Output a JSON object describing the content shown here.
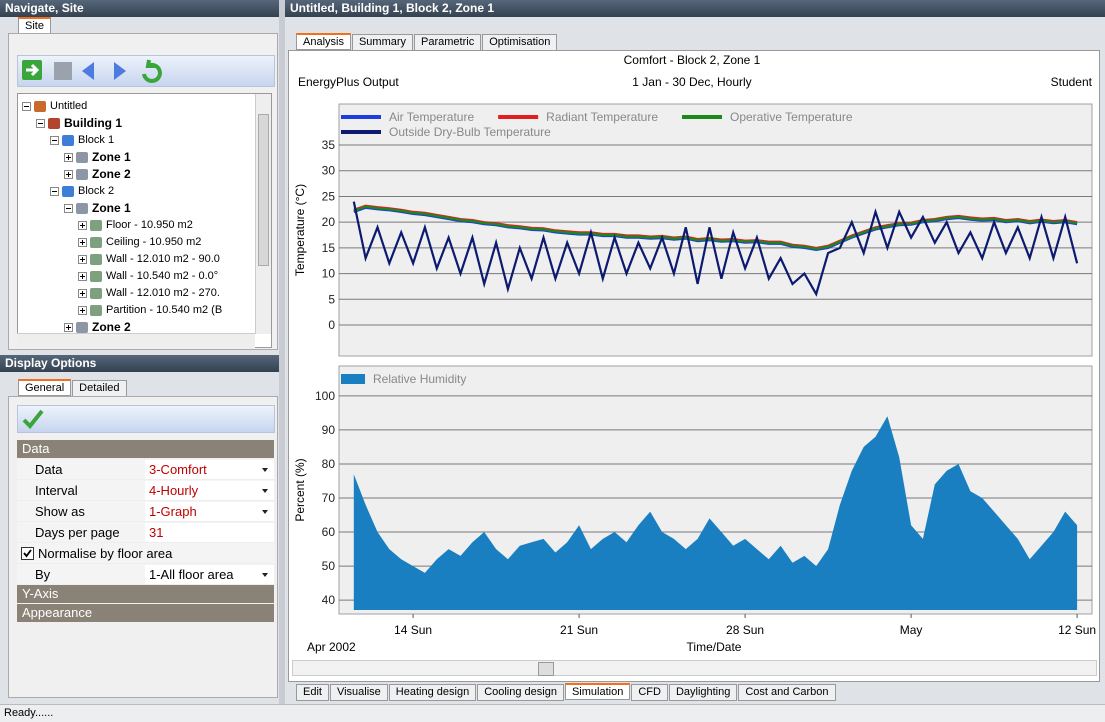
{
  "left_panel": {
    "title": "Navigate, Site",
    "tabs": [
      "Site"
    ],
    "tree": {
      "label": "Untitled",
      "children": [
        {
          "label": "Building 1",
          "bold": true,
          "children": [
            {
              "label": "Block 1",
              "children": [
                {
                  "label": "Zone 1",
                  "bold": true
                },
                {
                  "label": "Zone 2",
                  "bold": true
                }
              ]
            },
            {
              "label": "Block 2",
              "children": [
                {
                  "label": "Zone 1",
                  "bold": true,
                  "children": [
                    {
                      "label": "Floor - 10.950 m2"
                    },
                    {
                      "label": "Ceiling - 10.950 m2"
                    },
                    {
                      "label": "Wall - 12.010 m2 - 90.0"
                    },
                    {
                      "label": "Wall - 10.540 m2 - 0.0°"
                    },
                    {
                      "label": "Wall - 12.010 m2 - 270."
                    },
                    {
                      "label": "Partition - 10.540 m2 (B"
                    }
                  ]
                },
                {
                  "label": "Zone 2",
                  "bold": true
                }
              ]
            }
          ]
        }
      ]
    }
  },
  "display_options": {
    "title": "Display Options",
    "tabs": [
      "General",
      "Detailed"
    ],
    "sections": [
      {
        "title": "Data",
        "rows": [
          {
            "label": "Data",
            "value": "3-Comfort",
            "dropdown": true,
            "color": "#c00000"
          },
          {
            "label": "Interval",
            "value": "4-Hourly",
            "dropdown": true,
            "color": "#c00000"
          },
          {
            "label": "Show as",
            "value": "1-Graph",
            "dropdown": true,
            "color": "#c00000"
          },
          {
            "label": "Days per page",
            "value": "31",
            "dropdown": false,
            "color": "#c00000"
          },
          {
            "label": "Normalise by floor area",
            "checkbox": true
          },
          {
            "label": "By",
            "value": "1-All floor area",
            "dropdown": true,
            "color": "#000000"
          }
        ]
      },
      {
        "title": "Y-Axis"
      },
      {
        "title": "Appearance"
      }
    ]
  },
  "main": {
    "title": "Untitled, Building 1, Block 2, Zone 1",
    "tabs": [
      "Analysis",
      "Summary",
      "Parametric",
      "Optimisation"
    ],
    "active_tab": 0,
    "bottom_tabs": [
      "Edit",
      "Visualise",
      "Heating design",
      "Cooling design",
      "Simulation",
      "CFD",
      "Daylighting",
      "Cost and Carbon"
    ],
    "active_bottom_tab": 4
  },
  "status": "Ready......",
  "chart_data": [
    {
      "type": "line",
      "title": "Comfort - Block 2, Zone 1",
      "source": "EnergyPlus Output",
      "period": "1 Jan - 30 Dec, Hourly",
      "user": "Student",
      "y_label": "Temperature (°C)",
      "x": [
        11.5,
        12,
        12.5,
        13,
        13.5,
        14,
        14.5,
        15,
        15.5,
        16,
        16.5,
        17,
        17.5,
        18,
        18.5,
        19,
        19.5,
        20,
        20.5,
        21,
        21.5,
        22,
        22.5,
        23,
        23.5,
        24,
        24.5,
        25,
        25.5,
        26,
        26.5,
        27,
        27.5,
        28,
        28.5,
        29,
        29.5,
        30,
        30.5,
        31,
        31.5,
        32,
        32.5,
        33,
        33.5,
        34,
        34.5,
        35,
        35.5,
        36,
        36.5,
        37,
        37.5,
        38,
        38.5,
        39,
        39.5,
        40,
        40.5,
        41,
        41.5,
        42
      ],
      "xlim": [
        11.13,
        42.46
      ],
      "ylim": [
        -5.25,
        42.2
      ],
      "yticks": [
        0,
        5,
        10,
        15,
        20,
        25,
        30,
        35
      ],
      "grid": true,
      "series": [
        {
          "name": "Air Temperature",
          "color": "#1e3ce0",
          "values": [
            22.0,
            22.8,
            22.5,
            22.3,
            22.0,
            21.6,
            21.4,
            21.0,
            20.6,
            20.2,
            20.0,
            19.6,
            19.4,
            19.0,
            18.8,
            18.5,
            18.4,
            18.0,
            17.8,
            17.6,
            17.6,
            17.3,
            17.3,
            17.0,
            17.0,
            16.8,
            16.9,
            16.6,
            16.8,
            16.3,
            16.5,
            16.2,
            16.3,
            16.0,
            16.1,
            15.8,
            15.8,
            15.2,
            15.0,
            14.6,
            15.0,
            16.0,
            17.0,
            17.8,
            18.6,
            19.0,
            19.4,
            19.5,
            20.0,
            20.2,
            20.6,
            20.8,
            20.5,
            20.3,
            20.4,
            20.0,
            20.2,
            19.8,
            20.1,
            19.8,
            20.0,
            19.6
          ]
        },
        {
          "name": "Radiant Temperature",
          "color": "#e02020",
          "values": [
            22.4,
            23.2,
            22.9,
            22.7,
            22.4,
            22.0,
            21.8,
            21.4,
            21.0,
            20.6,
            20.4,
            20.0,
            19.8,
            19.4,
            19.2,
            18.9,
            18.8,
            18.4,
            18.2,
            18.0,
            18.0,
            17.7,
            17.7,
            17.4,
            17.4,
            17.2,
            17.3,
            17.0,
            17.2,
            16.7,
            16.9,
            16.6,
            16.7,
            16.4,
            16.5,
            16.2,
            16.2,
            15.6,
            15.4,
            15.0,
            15.4,
            16.4,
            17.4,
            18.2,
            19.0,
            19.4,
            19.8,
            19.9,
            20.4,
            20.6,
            21.0,
            21.2,
            20.9,
            20.7,
            20.8,
            20.4,
            20.6,
            20.2,
            20.5,
            20.2,
            20.4,
            20.0
          ]
        },
        {
          "name": "Operative Temperature",
          "color": "#1a8a1a",
          "values": [
            22.2,
            23.0,
            22.7,
            22.5,
            22.2,
            21.8,
            21.6,
            21.2,
            20.8,
            20.4,
            20.2,
            19.8,
            19.6,
            19.2,
            19.0,
            18.7,
            18.6,
            18.2,
            18.0,
            17.8,
            17.8,
            17.5,
            17.5,
            17.2,
            17.2,
            17.0,
            17.1,
            16.8,
            17.0,
            16.5,
            16.7,
            16.4,
            16.5,
            16.2,
            16.3,
            16.0,
            16.0,
            15.4,
            15.2,
            14.8,
            15.2,
            16.2,
            17.2,
            18.0,
            18.8,
            19.2,
            19.6,
            19.7,
            20.2,
            20.4,
            20.8,
            21.0,
            20.7,
            20.5,
            20.6,
            20.2,
            20.4,
            20.0,
            20.3,
            20.0,
            20.2,
            19.8
          ]
        },
        {
          "name": "Outside Dry-Bulb Temperature",
          "color": "#0c1a70",
          "values": [
            24,
            13,
            19,
            12,
            18,
            12,
            19,
            11,
            17,
            10,
            17,
            8,
            16,
            7,
            15,
            9,
            17,
            9,
            16,
            10,
            18,
            9,
            17,
            10,
            16,
            11,
            17,
            10,
            19,
            8,
            19,
            9,
            18,
            11,
            17,
            9,
            13,
            8,
            10,
            6,
            14,
            15,
            20,
            14,
            22,
            15,
            22,
            17,
            21,
            16,
            20,
            14,
            18,
            13,
            20,
            14,
            19,
            13,
            21,
            13,
            21,
            12
          ]
        }
      ]
    },
    {
      "type": "area",
      "y_label": "Percent (%)",
      "x_label": "Time/Date",
      "x_start_label": "Apr 2002",
      "x": [
        11.5,
        12,
        12.5,
        13,
        13.5,
        14,
        14.5,
        15,
        15.5,
        16,
        16.5,
        17,
        17.5,
        18,
        18.5,
        19,
        19.5,
        20,
        20.5,
        21,
        21.5,
        22,
        22.5,
        23,
        23.5,
        24,
        24.5,
        25,
        25.5,
        26,
        26.5,
        27,
        27.5,
        28,
        28.5,
        29,
        29.5,
        30,
        30.5,
        31,
        31.5,
        32,
        32.5,
        33,
        33.5,
        34,
        34.5,
        35,
        35.5,
        36,
        36.5,
        37,
        37.5,
        38,
        38.5,
        39,
        39.5,
        40,
        40.5,
        41,
        41.5,
        42
      ],
      "xlim": [
        11.13,
        42.46
      ],
      "xticks": [
        {
          "value": 14,
          "label": "14 Sun"
        },
        {
          "value": 21,
          "label": "21 Sun"
        },
        {
          "value": 28,
          "label": "28 Sun"
        },
        {
          "value": 35,
          "label": "May"
        },
        {
          "value": 42,
          "label": "12 Sun"
        }
      ],
      "ylim": [
        37.1,
        107.6
      ],
      "yticks": [
        40,
        50,
        60,
        70,
        80,
        90,
        100
      ],
      "grid": true,
      "series": [
        {
          "name": "Relative Humidity",
          "color": "#1a7fc0",
          "values": [
            77,
            68,
            60,
            55,
            52,
            50,
            48,
            52,
            55,
            53,
            57,
            60,
            55,
            52,
            56,
            57,
            58,
            54,
            57,
            62,
            55,
            58,
            60,
            57,
            62,
            66,
            60,
            58,
            55,
            58,
            64,
            60,
            56,
            58,
            55,
            52,
            56,
            51,
            53,
            50,
            55,
            68,
            78,
            85,
            88,
            94,
            82,
            62,
            58,
            74,
            78,
            80,
            72,
            70,
            66,
            62,
            58,
            52,
            56,
            60,
            66,
            62
          ]
        }
      ]
    }
  ]
}
